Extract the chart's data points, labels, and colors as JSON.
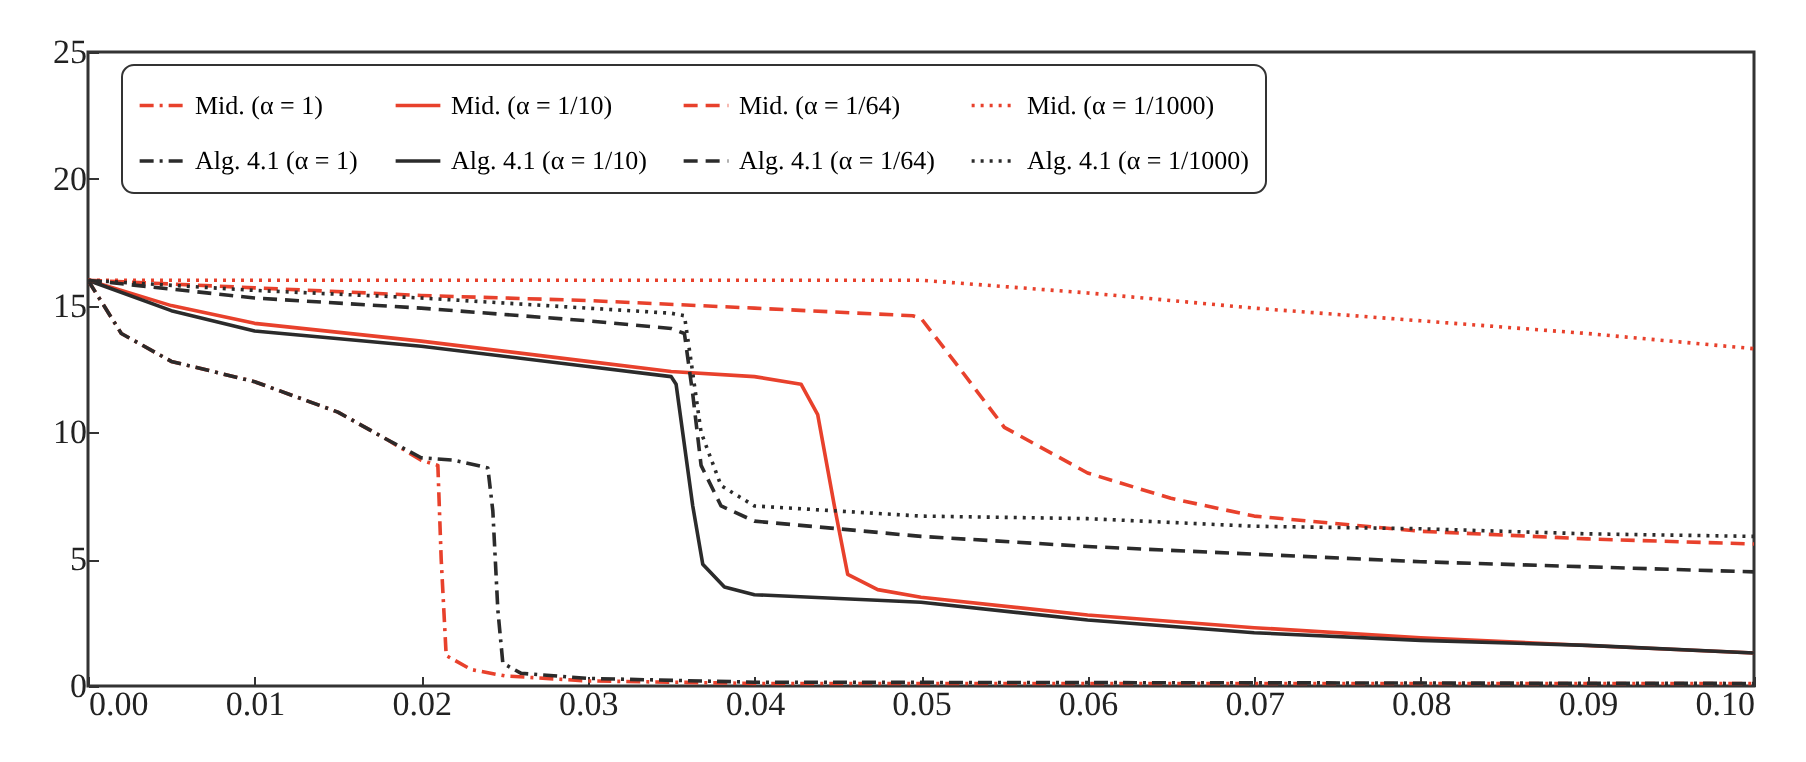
{
  "chart_data": {
    "type": "line",
    "xlim": [
      0,
      0.1
    ],
    "ylim": [
      0,
      25
    ],
    "xticks": [
      {
        "value": 0,
        "label": "0.00"
      },
      {
        "value": 0.01,
        "label": "0.01"
      },
      {
        "value": 0.02,
        "label": "0.02"
      },
      {
        "value": 0.03,
        "label": "0.03"
      },
      {
        "value": 0.04,
        "label": "0.04"
      },
      {
        "value": 0.05,
        "label": "0.05"
      },
      {
        "value": 0.06,
        "label": "0.06"
      },
      {
        "value": 0.07,
        "label": "0.07"
      },
      {
        "value": 0.08,
        "label": "0.08"
      },
      {
        "value": 0.09,
        "label": "0.09"
      },
      {
        "value": 0.1,
        "label": "0.10"
      }
    ],
    "yticks": [
      0,
      5,
      10,
      15,
      20,
      25
    ],
    "grid": false,
    "legend": "top",
    "marker": "none",
    "series": [
      {
        "name": "Mid. (α = 1)",
        "color": "#e8412c",
        "line_style": "dashdot",
        "x": [
          0,
          0.002,
          0.005,
          0.01,
          0.015,
          0.018,
          0.02,
          0.021,
          0.0212,
          0.0215,
          0.023,
          0.025,
          0.03,
          0.04,
          0.1
        ],
        "values": [
          16,
          13.9,
          12.8,
          12.0,
          10.8,
          9.7,
          8.9,
          8.7,
          5,
          1.2,
          0.65,
          0.4,
          0.2,
          0.1,
          0.1
        ]
      },
      {
        "name": "Alg. 4.1 (α = 1)",
        "color": "#2b2b2b",
        "line_style": "dashdot",
        "x": [
          0,
          0.002,
          0.005,
          0.01,
          0.015,
          0.018,
          0.02,
          0.022,
          0.024,
          0.0243,
          0.0246,
          0.0249,
          0.026,
          0.03,
          0.04,
          0.1
        ],
        "values": [
          16,
          13.9,
          12.8,
          12.0,
          10.8,
          9.7,
          9.0,
          8.9,
          8.6,
          6.9,
          3.0,
          0.9,
          0.5,
          0.3,
          0.15,
          0.1
        ]
      },
      {
        "name": "Mid. (α = 1/10)",
        "color": "#e8412c",
        "line_style": "solid",
        "x": [
          0,
          0.005,
          0.01,
          0.02,
          0.03,
          0.035,
          0.04,
          0.0428,
          0.0438,
          0.0448,
          0.0456,
          0.0474,
          0.05,
          0.06,
          0.07,
          0.08,
          0.09,
          0.1
        ],
        "values": [
          16,
          15.0,
          14.3,
          13.6,
          12.8,
          12.4,
          12.2,
          11.9,
          10.7,
          7.1,
          4.4,
          3.8,
          3.5,
          2.8,
          2.3,
          1.9,
          1.6,
          1.3
        ]
      },
      {
        "name": "Alg. 4.1 (α = 1/10)",
        "color": "#2b2b2b",
        "line_style": "solid",
        "x": [
          0,
          0.005,
          0.01,
          0.02,
          0.03,
          0.035,
          0.0353,
          0.0363,
          0.0369,
          0.0382,
          0.04,
          0.05,
          0.06,
          0.07,
          0.08,
          0.09,
          0.1
        ],
        "values": [
          16,
          14.8,
          14.0,
          13.4,
          12.6,
          12.2,
          11.9,
          7.1,
          4.8,
          3.9,
          3.6,
          3.3,
          2.6,
          2.1,
          1.8,
          1.6,
          1.3
        ]
      },
      {
        "name": "Mid. (α = 1/64)",
        "color": "#e8412c",
        "line_style": "dashed",
        "x": [
          0,
          0.01,
          0.02,
          0.03,
          0.04,
          0.0495,
          0.05,
          0.052,
          0.055,
          0.06,
          0.065,
          0.07,
          0.08,
          0.09,
          0.1
        ],
        "values": [
          16,
          15.7,
          15.4,
          15.2,
          14.9,
          14.6,
          14.5,
          12.8,
          10.2,
          8.4,
          7.4,
          6.7,
          6.1,
          5.8,
          5.6
        ]
      },
      {
        "name": "Alg. 4.1 (α = 1/64)",
        "color": "#2b2b2b",
        "line_style": "dashed",
        "x": [
          0,
          0.01,
          0.02,
          0.03,
          0.035,
          0.0358,
          0.0363,
          0.0368,
          0.038,
          0.04,
          0.05,
          0.06,
          0.07,
          0.08,
          0.09,
          0.1
        ],
        "values": [
          16,
          15.3,
          14.9,
          14.4,
          14.1,
          13.9,
          11.5,
          8.7,
          7.1,
          6.5,
          5.9,
          5.5,
          5.2,
          4.9,
          4.7,
          4.5
        ]
      },
      {
        "name": "Mid. (α = 1/1000)",
        "color": "#e8412c",
        "line_style": "dotted",
        "x": [
          0,
          0.01,
          0.02,
          0.03,
          0.04,
          0.05,
          0.06,
          0.07,
          0.08,
          0.09,
          0.1
        ],
        "values": [
          16,
          16,
          16,
          16,
          16,
          16,
          15.5,
          14.9,
          14.4,
          13.9,
          13.3
        ]
      },
      {
        "name": "Alg. 4.1 (α = 1/1000)",
        "color": "#2b2b2b",
        "line_style": "dotted",
        "x": [
          0,
          0.01,
          0.02,
          0.03,
          0.035,
          0.0358,
          0.0362,
          0.0368,
          0.038,
          0.04,
          0.05,
          0.06,
          0.07,
          0.08,
          0.09,
          0.1
        ],
        "values": [
          16,
          15.6,
          15.3,
          14.9,
          14.7,
          14.6,
          12.8,
          10.0,
          7.9,
          7.1,
          6.7,
          6.6,
          6.3,
          6.2,
          6.0,
          5.9
        ]
      }
    ]
  }
}
